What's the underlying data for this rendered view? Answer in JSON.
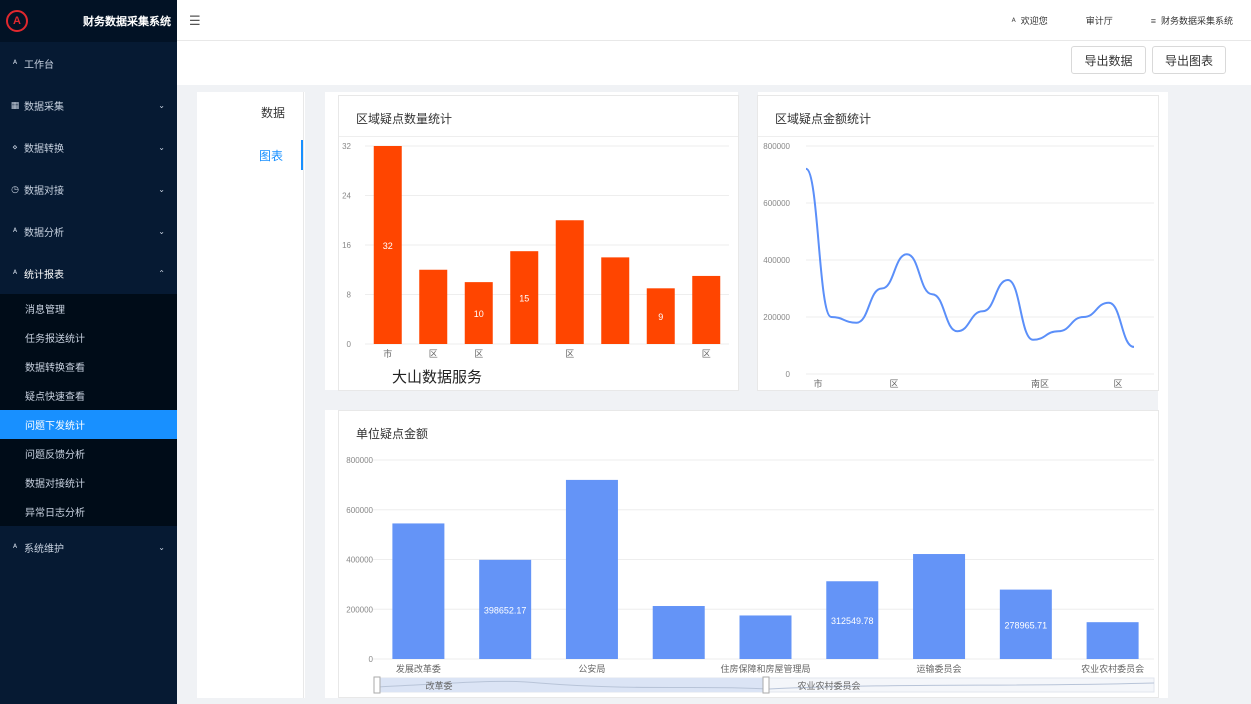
{
  "app": {
    "title": "财务数据采集系统",
    "logo_glyph": "A"
  },
  "header": {
    "collapse_icon": "menu-fold-icon",
    "welcome": "欢迎您",
    "org": "审计厅",
    "system": "财务数据采集系统"
  },
  "sidebar": {
    "items": [
      {
        "label": "工作台",
        "icon": "user-icon",
        "glyph": "ᴬ"
      },
      {
        "label": "数据采集",
        "icon": "table-icon",
        "glyph": "▦",
        "chevron": "down"
      },
      {
        "label": "数据转换",
        "icon": "share-icon",
        "glyph": "⋄",
        "chevron": "down"
      },
      {
        "label": "数据对接",
        "icon": "clock-icon",
        "glyph": "◷",
        "chevron": "down"
      },
      {
        "label": "数据分析",
        "icon": "user-icon",
        "glyph": "ᴬ",
        "chevron": "down"
      },
      {
        "label": "统计报表",
        "icon": "user-icon",
        "glyph": "ᴬ",
        "chevron": "up"
      }
    ],
    "subitems": [
      {
        "label": "消息管理"
      },
      {
        "label": "任务报送统计"
      },
      {
        "label": "数据转换查看"
      },
      {
        "label": "疑点快速查看"
      },
      {
        "label": "问题下发统计",
        "active": true
      },
      {
        "label": "问题反馈分析"
      },
      {
        "label": "数据对接统计"
      },
      {
        "label": "异常日志分析"
      }
    ],
    "last_item": {
      "label": "系统维护",
      "icon": "user-icon",
      "glyph": "ᴬ",
      "chevron": "down"
    }
  },
  "toolbar": {
    "export_data": "导出数据",
    "export_chart": "导出图表"
  },
  "tabs": {
    "data": "数据",
    "chart": "图表",
    "active": "chart"
  },
  "cards": {
    "region_count_title": "区域疑点数量统计",
    "region_amount_title": "区域疑点金额统计",
    "unit_amount_title": "单位疑点金额"
  },
  "watermark": "大山数据服务",
  "chart_data": [
    {
      "type": "bar",
      "title": "区域疑点数量统计",
      "categories": [
        "市",
        "区",
        "区",
        "",
        "区",
        "",
        "",
        "区"
      ],
      "values": [
        32,
        12,
        10,
        15,
        20,
        14,
        9,
        11
      ],
      "data_labels": [
        "32",
        "",
        "10",
        "15",
        "",
        "",
        "9",
        ""
      ],
      "yticks": [
        0,
        8,
        16,
        24,
        32
      ],
      "ylim": [
        0,
        32
      ],
      "color": "#ff4500"
    },
    {
      "type": "line",
      "title": "区域疑点金额统计",
      "x_labels": [
        "市",
        "区",
        "",
        "南区",
        "区"
      ],
      "values": [
        720000,
        200000,
        180000,
        300000,
        420000,
        280000,
        150000,
        220000,
        330000,
        120000,
        150000,
        200000,
        250000,
        95000
      ],
      "yticks": [
        0,
        200000,
        400000,
        600000,
        800000
      ],
      "ylim": [
        0,
        800000
      ],
      "color": "#5b8ff9"
    },
    {
      "type": "bar",
      "title": "单位疑点金额",
      "categories": [
        "发展改革委",
        "",
        "公安局",
        "",
        "住房保障和房屋管理局",
        "",
        "运输委员会",
        "",
        "农业农村委员会"
      ],
      "values": [
        545000,
        398652.17,
        720000,
        213000,
        175000,
        312549.78,
        422000,
        278965.71,
        148000
      ],
      "data_labels": [
        "",
        "398652.17",
        "",
        "",
        "",
        "312549.78",
        "",
        "278965.71",
        ""
      ],
      "yticks": [
        0,
        200000,
        400000,
        600000,
        800000
      ],
      "ylim": [
        0,
        800000
      ],
      "color": "#6494f7",
      "zoom_labels": [
        "改革委",
        "农业农村委员会"
      ]
    }
  ]
}
